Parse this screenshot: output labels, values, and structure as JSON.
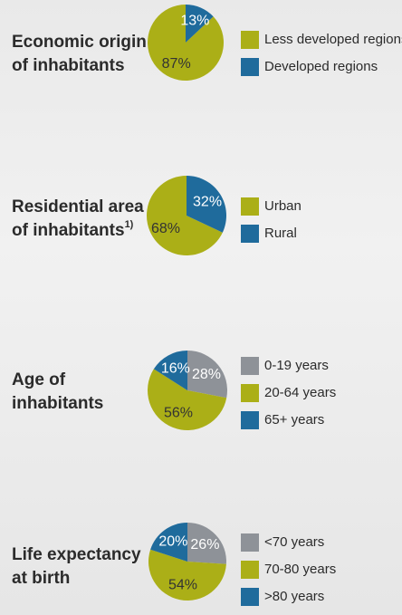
{
  "chart_data": [
    {
      "type": "pie",
      "title": [
        "Economic origin",
        "of inhabitants"
      ],
      "categories": [
        "Less developed regions",
        "Developed regions"
      ],
      "values": [
        87,
        13
      ],
      "value_labels": [
        "87%",
        "13%"
      ],
      "colors": [
        "#abaf17",
        "#1f6b9c"
      ],
      "direction": "counterclockwise"
    },
    {
      "type": "pie",
      "title": [
        "Residential area",
        "of inhabitants"
      ],
      "title_note": "1)",
      "categories": [
        "Urban",
        "Rural"
      ],
      "values": [
        68,
        32
      ],
      "value_labels": [
        "68%",
        "32%"
      ],
      "colors": [
        "#abaf17",
        "#1f6b9c"
      ],
      "direction": "counterclockwise"
    },
    {
      "type": "pie",
      "title": [
        "Age of",
        "inhabitants"
      ],
      "categories": [
        "0-19 years",
        "20-64 years",
        "65+ years"
      ],
      "values": [
        28,
        56,
        16
      ],
      "value_labels": [
        "28%",
        "56%",
        "16%"
      ],
      "colors": [
        "#8e9298",
        "#abaf17",
        "#1f6b9c"
      ],
      "direction": "clockwise"
    },
    {
      "type": "pie",
      "title": [
        "Life expectancy",
        "at birth"
      ],
      "categories": [
        "<70 years",
        "70-80 years",
        ">80 years"
      ],
      "values": [
        26,
        54,
        20
      ],
      "value_labels": [
        "26%",
        "54%",
        "20%"
      ],
      "colors": [
        "#8e9298",
        "#abaf17",
        "#1f6b9c"
      ],
      "direction": "clockwise"
    }
  ]
}
